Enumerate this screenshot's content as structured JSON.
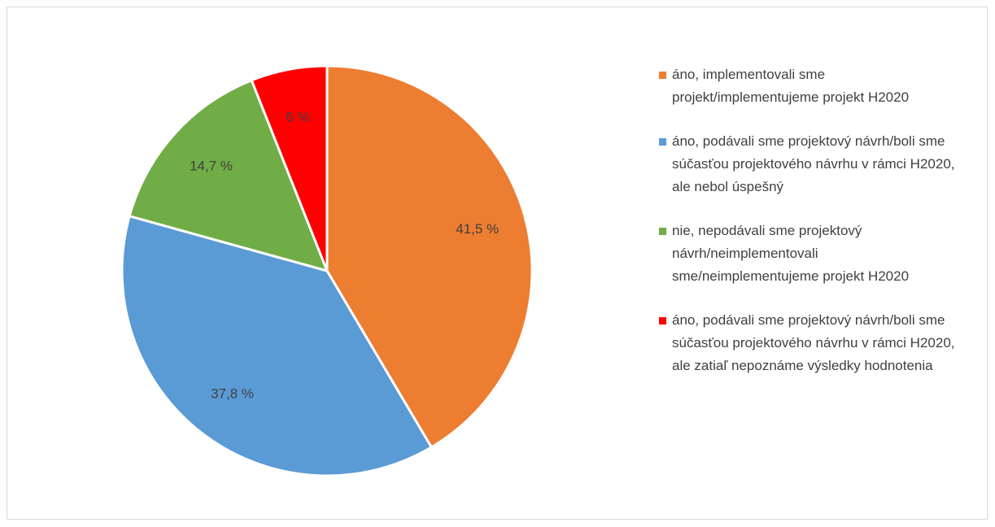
{
  "chart_data": {
    "type": "pie",
    "categories": [
      "áno, implementovali sme projekt/implementujeme projekt H2020",
      "áno, podávali sme projektový návrh/boli sme súčasťou projektového návrhu v rámci H2020, ale nebol úspešný",
      "nie, nepodávali sme projektový návrh/neimplementovali sme/neimplementujeme projekt H2020",
      "áno, podávali sme projektový návrh/boli sme súčasťou projektového návrhu v rámci H2020, ale zatiaľ nepoznáme výsledky hodnotenia"
    ],
    "values": [
      41.5,
      37.8,
      14.7,
      6
    ],
    "value_labels": [
      "41,5 %",
      "37,8 %",
      "14,7 %",
      "6 %"
    ],
    "colors": [
      "#ed7d31",
      "#5b9bd5",
      "#70ad47",
      "#ff0000"
    ],
    "legend": "right"
  }
}
